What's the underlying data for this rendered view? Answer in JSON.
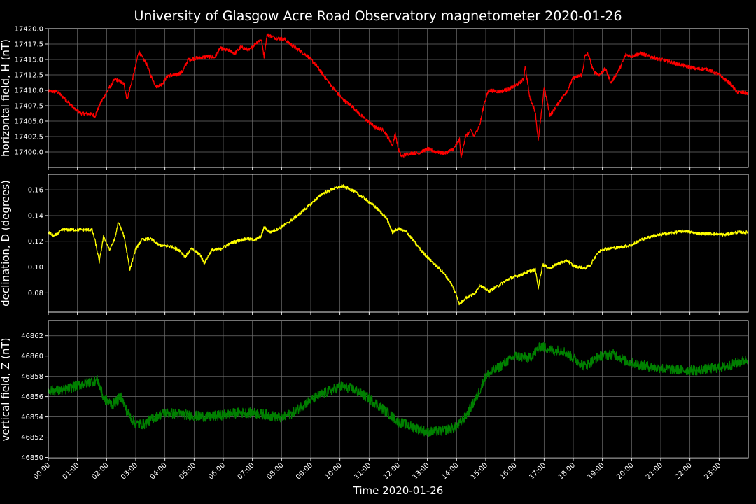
{
  "title": "University of Glasgow Acre Road Observatory magnetometer 2020-01-26",
  "colors": {
    "background": "#000000",
    "text": "#ffffff",
    "grid": "#6e6e6e"
  },
  "chart_data": {
    "type": "line",
    "xlabel": "Time 2020-01-26",
    "x_tick_labels": [
      "00:00",
      "01:00",
      "02:00",
      "03:00",
      "04:00",
      "05:00",
      "06:00",
      "07:00",
      "08:00",
      "09:00",
      "10:00",
      "11:00",
      "12:00",
      "13:00",
      "14:00",
      "15:00",
      "16:00",
      "17:00",
      "18:00",
      "19:00",
      "20:00",
      "21:00",
      "22:00",
      "23:00"
    ],
    "xlim_hours": [
      0,
      24
    ],
    "grid": true,
    "panels": [
      {
        "ylabel": "horizontal field, H (nT)",
        "color": "#ff0000",
        "ylim": [
          17397.5,
          17420.0
        ],
        "yticks": [
          17400.0,
          17402.5,
          17405.0,
          17407.5,
          17410.0,
          17412.5,
          17415.0,
          17417.5,
          17420.0
        ],
        "ytick_labels": [
          "17400.0",
          "17402.5",
          "17405.0",
          "17407.5",
          "17410.0",
          "17412.5",
          "17415.0",
          "17417.5",
          "17420.0"
        ],
        "noise": 0.3,
        "points": [
          [
            0,
            17409.8
          ],
          [
            0.3,
            17409.8
          ],
          [
            0.6,
            17408.5
          ],
          [
            0.9,
            17407
          ],
          [
            1.1,
            17406.3
          ],
          [
            1.5,
            17406.1
          ],
          [
            1.6,
            17405.8
          ],
          [
            1.8,
            17408
          ],
          [
            2.1,
            17410.5
          ],
          [
            2.3,
            17411.8
          ],
          [
            2.6,
            17411
          ],
          [
            2.7,
            17408.5
          ],
          [
            2.9,
            17412
          ],
          [
            3,
            17414
          ],
          [
            3.1,
            17416.3
          ],
          [
            3.4,
            17414
          ],
          [
            3.5,
            17412.5
          ],
          [
            3.7,
            17410.6
          ],
          [
            3.9,
            17411
          ],
          [
            4.1,
            17412.4
          ],
          [
            4.4,
            17412.5
          ],
          [
            4.6,
            17413
          ],
          [
            4.8,
            17415
          ],
          [
            5.2,
            17415.3
          ],
          [
            5.5,
            17415.5
          ],
          [
            5.7,
            17415.3
          ],
          [
            5.9,
            17416.8
          ],
          [
            6.2,
            17416.4
          ],
          [
            6.4,
            17416
          ],
          [
            6.6,
            17417
          ],
          [
            6.9,
            17416.5
          ],
          [
            7.1,
            17417.6
          ],
          [
            7.3,
            17418.3
          ],
          [
            7.4,
            17415.5
          ],
          [
            7.5,
            17419
          ],
          [
            7.8,
            17418.5
          ],
          [
            8.1,
            17418.3
          ],
          [
            8.3,
            17417.5
          ],
          [
            8.6,
            17416.5
          ],
          [
            8.9,
            17415.5
          ],
          [
            9.2,
            17414
          ],
          [
            9.5,
            17412
          ],
          [
            9.8,
            17410.2
          ],
          [
            10.1,
            17408.5
          ],
          [
            10.4,
            17407.5
          ],
          [
            10.7,
            17406
          ],
          [
            11,
            17404.8
          ],
          [
            11.2,
            17404
          ],
          [
            11.5,
            17403.5
          ],
          [
            11.7,
            17402
          ],
          [
            11.8,
            17401
          ],
          [
            11.9,
            17403
          ],
          [
            12,
            17400.5
          ],
          [
            12.1,
            17399.3
          ],
          [
            12.4,
            17399.8
          ],
          [
            12.7,
            17399.8
          ],
          [
            13,
            17400.5
          ],
          [
            13.3,
            17400
          ],
          [
            13.6,
            17399.8
          ],
          [
            13.9,
            17400.5
          ],
          [
            14.1,
            17402
          ],
          [
            14.15,
            17399
          ],
          [
            14.3,
            17402.5
          ],
          [
            14.5,
            17403.5
          ],
          [
            14.6,
            17402.5
          ],
          [
            14.8,
            17404.5
          ],
          [
            14.95,
            17408
          ],
          [
            15.1,
            17410
          ],
          [
            15.5,
            17409.8
          ],
          [
            15.8,
            17410.2
          ],
          [
            16.1,
            17411
          ],
          [
            16.3,
            17411.8
          ],
          [
            16.35,
            17414
          ],
          [
            16.5,
            17409
          ],
          [
            16.7,
            17406.5
          ],
          [
            16.8,
            17401.8
          ],
          [
            16.95,
            17408
          ],
          [
            17,
            17410.5
          ],
          [
            17.2,
            17406
          ],
          [
            17.3,
            17406.5
          ],
          [
            17.5,
            17408
          ],
          [
            17.8,
            17410
          ],
          [
            18,
            17412
          ],
          [
            18.3,
            17412.5
          ],
          [
            18.4,
            17415.5
          ],
          [
            18.5,
            17416
          ],
          [
            18.7,
            17413
          ],
          [
            18.9,
            17412.5
          ],
          [
            19.1,
            17413.5
          ],
          [
            19.3,
            17411.2
          ],
          [
            19.6,
            17413.6
          ],
          [
            19.8,
            17415.8
          ],
          [
            20,
            17415.5
          ],
          [
            20.3,
            17416
          ],
          [
            20.6,
            17415.5
          ],
          [
            21,
            17415
          ],
          [
            21.4,
            17414.5
          ],
          [
            21.8,
            17414
          ],
          [
            22.2,
            17413.5
          ],
          [
            22.6,
            17413.4
          ],
          [
            23,
            17412.5
          ],
          [
            23.4,
            17411
          ],
          [
            23.6,
            17409.7
          ],
          [
            24,
            17409.5
          ]
        ]
      },
      {
        "ylabel": "declination, D (degrees)",
        "color": "#ffff00",
        "ylim": [
          0.065,
          0.172
        ],
        "yticks": [
          0.08,
          0.1,
          0.12,
          0.14,
          0.16
        ],
        "ytick_labels": [
          "0.08",
          "0.10",
          "0.12",
          "0.14",
          "0.16"
        ],
        "noise": 0.0012,
        "points": [
          [
            0,
            0.127
          ],
          [
            0.2,
            0.124
          ],
          [
            0.5,
            0.129
          ],
          [
            1,
            0.129
          ],
          [
            1.5,
            0.129
          ],
          [
            1.6,
            0.121
          ],
          [
            1.75,
            0.104
          ],
          [
            1.9,
            0.124
          ],
          [
            2.1,
            0.113
          ],
          [
            2.3,
            0.123
          ],
          [
            2.4,
            0.135
          ],
          [
            2.6,
            0.124
          ],
          [
            2.8,
            0.098
          ],
          [
            3,
            0.114
          ],
          [
            3.2,
            0.121
          ],
          [
            3.5,
            0.122
          ],
          [
            3.8,
            0.117
          ],
          [
            4.2,
            0.116
          ],
          [
            4.5,
            0.113
          ],
          [
            4.7,
            0.108
          ],
          [
            4.9,
            0.114
          ],
          [
            5.2,
            0.11
          ],
          [
            5.35,
            0.103
          ],
          [
            5.6,
            0.113
          ],
          [
            5.9,
            0.114
          ],
          [
            6.3,
            0.119
          ],
          [
            6.8,
            0.122
          ],
          [
            7.1,
            0.121
          ],
          [
            7.3,
            0.124
          ],
          [
            7.4,
            0.131
          ],
          [
            7.6,
            0.127
          ],
          [
            7.9,
            0.13
          ],
          [
            8.2,
            0.134
          ],
          [
            8.6,
            0.141
          ],
          [
            9,
            0.149
          ],
          [
            9.4,
            0.157
          ],
          [
            9.8,
            0.161
          ],
          [
            10.1,
            0.163
          ],
          [
            10.4,
            0.16
          ],
          [
            10.8,
            0.154
          ],
          [
            11.2,
            0.147
          ],
          [
            11.6,
            0.138
          ],
          [
            11.8,
            0.127
          ],
          [
            12,
            0.13
          ],
          [
            12.3,
            0.127
          ],
          [
            12.6,
            0.118
          ],
          [
            12.9,
            0.11
          ],
          [
            13.2,
            0.103
          ],
          [
            13.5,
            0.097
          ],
          [
            13.8,
            0.088
          ],
          [
            14,
            0.078
          ],
          [
            14.1,
            0.071
          ],
          [
            14.3,
            0.076
          ],
          [
            14.6,
            0.079
          ],
          [
            14.8,
            0.086
          ],
          [
            15.1,
            0.081
          ],
          [
            15.4,
            0.085
          ],
          [
            15.8,
            0.091
          ],
          [
            16.2,
            0.094
          ],
          [
            16.4,
            0.096
          ],
          [
            16.7,
            0.098
          ],
          [
            16.8,
            0.084
          ],
          [
            16.95,
            0.102
          ],
          [
            17.2,
            0.099
          ],
          [
            17.5,
            0.103
          ],
          [
            17.8,
            0.105
          ],
          [
            18,
            0.101
          ],
          [
            18.4,
            0.099
          ],
          [
            18.6,
            0.102
          ],
          [
            18.8,
            0.11
          ],
          [
            19,
            0.114
          ],
          [
            19.5,
            0.115
          ],
          [
            20,
            0.117
          ],
          [
            20.3,
            0.121
          ],
          [
            20.7,
            0.124
          ],
          [
            21.2,
            0.126
          ],
          [
            21.8,
            0.128
          ],
          [
            22.3,
            0.126
          ],
          [
            22.7,
            0.126
          ],
          [
            23.2,
            0.125
          ],
          [
            23.6,
            0.127
          ],
          [
            24,
            0.127
          ]
        ]
      },
      {
        "ylabel": "vertical field, Z (nT)",
        "color": "#008000",
        "ylim": [
          46849.9,
          46863.5
        ],
        "yticks": [
          46850,
          46852,
          46854,
          46856,
          46858,
          46860,
          46862
        ],
        "ytick_labels": [
          "46850",
          "46852",
          "46854",
          "46856",
          "46858",
          "46860",
          "46862"
        ],
        "noise": 0.5,
        "points": [
          [
            0,
            46856.6
          ],
          [
            0.5,
            46856.6
          ],
          [
            1,
            46857.1
          ],
          [
            1.5,
            46857.5
          ],
          [
            1.7,
            46857.6
          ],
          [
            1.9,
            46855.8
          ],
          [
            2.2,
            46855.2
          ],
          [
            2.5,
            46856
          ],
          [
            2.7,
            46854.5
          ],
          [
            3,
            46853.3
          ],
          [
            3.3,
            46853.3
          ],
          [
            3.6,
            46853.9
          ],
          [
            4,
            46854.4
          ],
          [
            4.5,
            46854.3
          ],
          [
            5,
            46854.1
          ],
          [
            5.5,
            46854.0
          ],
          [
            6,
            46854.2
          ],
          [
            6.5,
            46854.4
          ],
          [
            7,
            46854.4
          ],
          [
            7.5,
            46854.2
          ],
          [
            8,
            46853.9
          ],
          [
            8.4,
            46854.4
          ],
          [
            8.8,
            46855.3
          ],
          [
            9.2,
            46856.0
          ],
          [
            9.6,
            46856.5
          ],
          [
            10,
            46857
          ],
          [
            10.4,
            46856.8
          ],
          [
            10.8,
            46856.2
          ],
          [
            11.2,
            46855.4
          ],
          [
            11.6,
            46854.5
          ],
          [
            12,
            46853.5
          ],
          [
            12.5,
            46853.0
          ],
          [
            13,
            46852.5
          ],
          [
            13.5,
            46852.6
          ],
          [
            14,
            46853
          ],
          [
            14.3,
            46854
          ],
          [
            14.7,
            46856
          ],
          [
            15,
            46858
          ],
          [
            15.5,
            46859
          ],
          [
            16,
            46860
          ],
          [
            16.5,
            46859.8
          ],
          [
            16.9,
            46861
          ],
          [
            17.3,
            46860.5
          ],
          [
            17.6,
            46860.6
          ],
          [
            18,
            46859.8
          ],
          [
            18.4,
            46859
          ],
          [
            18.9,
            46860
          ],
          [
            19.4,
            46860.2
          ],
          [
            19.8,
            46859.5
          ],
          [
            20.2,
            46859.2
          ],
          [
            20.7,
            46858.9
          ],
          [
            21.3,
            46858.7
          ],
          [
            21.8,
            46858.6
          ],
          [
            22.3,
            46858.6
          ],
          [
            22.8,
            46858.8
          ],
          [
            23.3,
            46859
          ],
          [
            23.7,
            46859.4
          ],
          [
            24,
            46859.7
          ]
        ]
      }
    ]
  }
}
